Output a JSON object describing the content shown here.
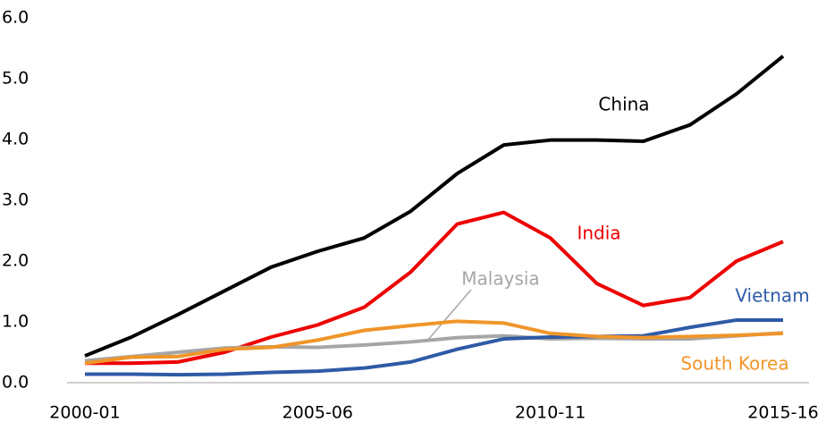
{
  "chart_data": {
    "type": "line",
    "categories": [
      "2000-01",
      null,
      null,
      null,
      null,
      "2005-06",
      null,
      null,
      null,
      null,
      "2010-11",
      null,
      null,
      null,
      null,
      "2015-16"
    ],
    "series": [
      {
        "name": "China",
        "color": "#000000",
        "values": [
          0.44,
          0.75,
          1.12,
          1.51,
          1.9,
          2.16,
          2.38,
          2.82,
          3.44,
          3.91,
          3.99,
          3.99,
          3.97,
          4.24,
          4.75,
          5.37
        ]
      },
      {
        "name": "India",
        "color": "#ee0000",
        "values": [
          0.32,
          0.32,
          0.34,
          0.5,
          0.75,
          0.95,
          1.24,
          1.82,
          2.61,
          2.8,
          2.38,
          1.63,
          1.27,
          1.4,
          2.0,
          2.32
        ]
      },
      {
        "name": "Malaysia",
        "color": "#a6a6a6",
        "values": [
          0.36,
          0.43,
          0.5,
          0.57,
          0.59,
          0.58,
          0.62,
          0.67,
          0.74,
          0.77,
          0.72,
          0.73,
          0.72,
          0.72,
          0.77,
          0.82
        ]
      },
      {
        "name": "Vietnam",
        "color": "#2e5aa6",
        "values": [
          0.14,
          0.14,
          0.13,
          0.14,
          0.17,
          0.19,
          0.24,
          0.34,
          0.55,
          0.72,
          0.75,
          0.76,
          0.77,
          0.91,
          1.03,
          1.03
        ]
      },
      {
        "name": "South Korea",
        "color": "#f0952a",
        "values": [
          0.32,
          0.42,
          0.43,
          0.55,
          0.58,
          0.7,
          0.86,
          0.94,
          1.01,
          0.98,
          0.81,
          0.76,
          0.74,
          0.76,
          0.78,
          0.81
        ]
      }
    ],
    "ylim": [
      0,
      6
    ],
    "yticks": [
      {
        "value": 0,
        "label": "0.0"
      },
      {
        "value": 1,
        "label": "1.0"
      },
      {
        "value": 2,
        "label": "2.0"
      },
      {
        "value": 3,
        "label": "3.0"
      },
      {
        "value": 4,
        "label": "4.0"
      },
      {
        "value": 5,
        "label": "5.0"
      },
      {
        "value": 6,
        "label": "6.0"
      }
    ],
    "grid": false
  }
}
